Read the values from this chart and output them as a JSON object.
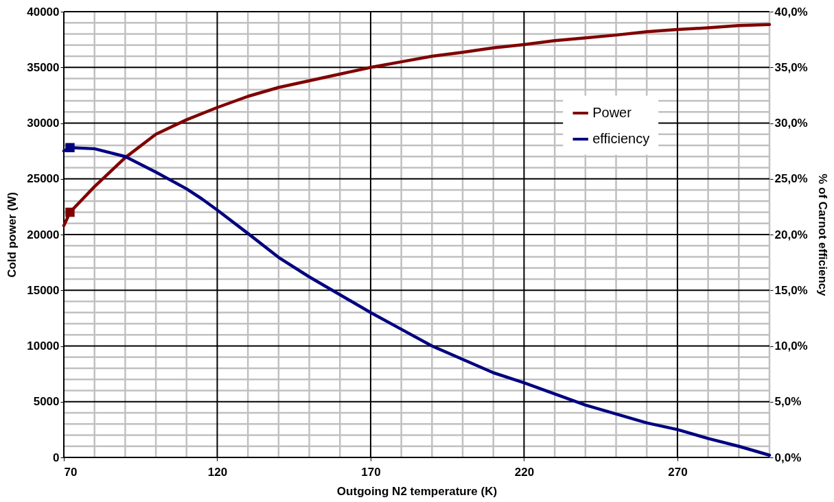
{
  "chart_data": {
    "type": "line",
    "xlabel": "Outgoing N2 temperature (K)",
    "ylabel": "Cold power (W)",
    "y2label": "% of Carnot efficiency",
    "xlim": [
      70,
      300
    ],
    "xticks": [
      70,
      120,
      170,
      220,
      270
    ],
    "ylim": [
      0,
      40000
    ],
    "yticks": [
      0,
      5000,
      10000,
      15000,
      20000,
      25000,
      30000,
      35000,
      40000
    ],
    "y2lim": [
      0,
      40
    ],
    "y2ticks": [
      {
        "value": 0,
        "label": "0,0%"
      },
      {
        "value": 5,
        "label": "5,0%"
      },
      {
        "value": 10,
        "label": "10,0%"
      },
      {
        "value": 15,
        "label": "15,0%"
      },
      {
        "value": 20,
        "label": "20,0%"
      },
      {
        "value": 25,
        "label": "25,0%"
      },
      {
        "value": 30,
        "label": "30,0%"
      },
      {
        "value": 35,
        "label": "35,0%"
      },
      {
        "value": 40,
        "label": "40,0%"
      }
    ],
    "grid": true,
    "legend": "top right",
    "line_style": "solid",
    "marker": "none",
    "series": [
      {
        "name": "Power",
        "color": "#800000",
        "x": [
          70,
          72,
          80,
          90,
          100,
          110,
          120,
          130,
          140,
          150,
          160,
          170,
          180,
          190,
          200,
          210,
          220,
          230,
          240,
          250,
          260,
          270,
          280,
          290,
          300
        ],
        "values": [
          20800,
          22000,
          24300,
          26900,
          29000,
          30300,
          31400,
          32400,
          33200,
          33800,
          34400,
          35000,
          35500,
          36000,
          36350,
          36750,
          37050,
          37400,
          37650,
          37900,
          38200,
          38400,
          38550,
          38750,
          38850
        ]
      },
      {
        "name": "efficiency",
        "color": "#000080",
        "axis": "y2",
        "x": [
          70,
          72,
          80,
          90,
          100,
          110,
          115,
          120,
          130,
          140,
          150,
          160,
          170,
          180,
          190,
          200,
          210,
          220,
          230,
          240,
          250,
          260,
          270,
          280,
          290,
          300
        ],
        "values": [
          27.5,
          27.8,
          27.7,
          27.0,
          25.6,
          24.1,
          23.2,
          22.2,
          20.1,
          17.95,
          16.2,
          14.6,
          13.0,
          11.5,
          10.0,
          8.8,
          7.6,
          6.7,
          5.7,
          4.7,
          3.9,
          3.1,
          2.5,
          1.7,
          1.0,
          0.2
        ]
      },
      {
        "type": "scatter",
        "marker": "square",
        "color": "#800000",
        "x": [
          72
        ],
        "values": [
          22000
        ]
      },
      {
        "type": "scatter",
        "marker": "square",
        "color": "#000080",
        "axis": "y2",
        "x": [
          72
        ],
        "values": [
          27.8
        ]
      }
    ]
  }
}
